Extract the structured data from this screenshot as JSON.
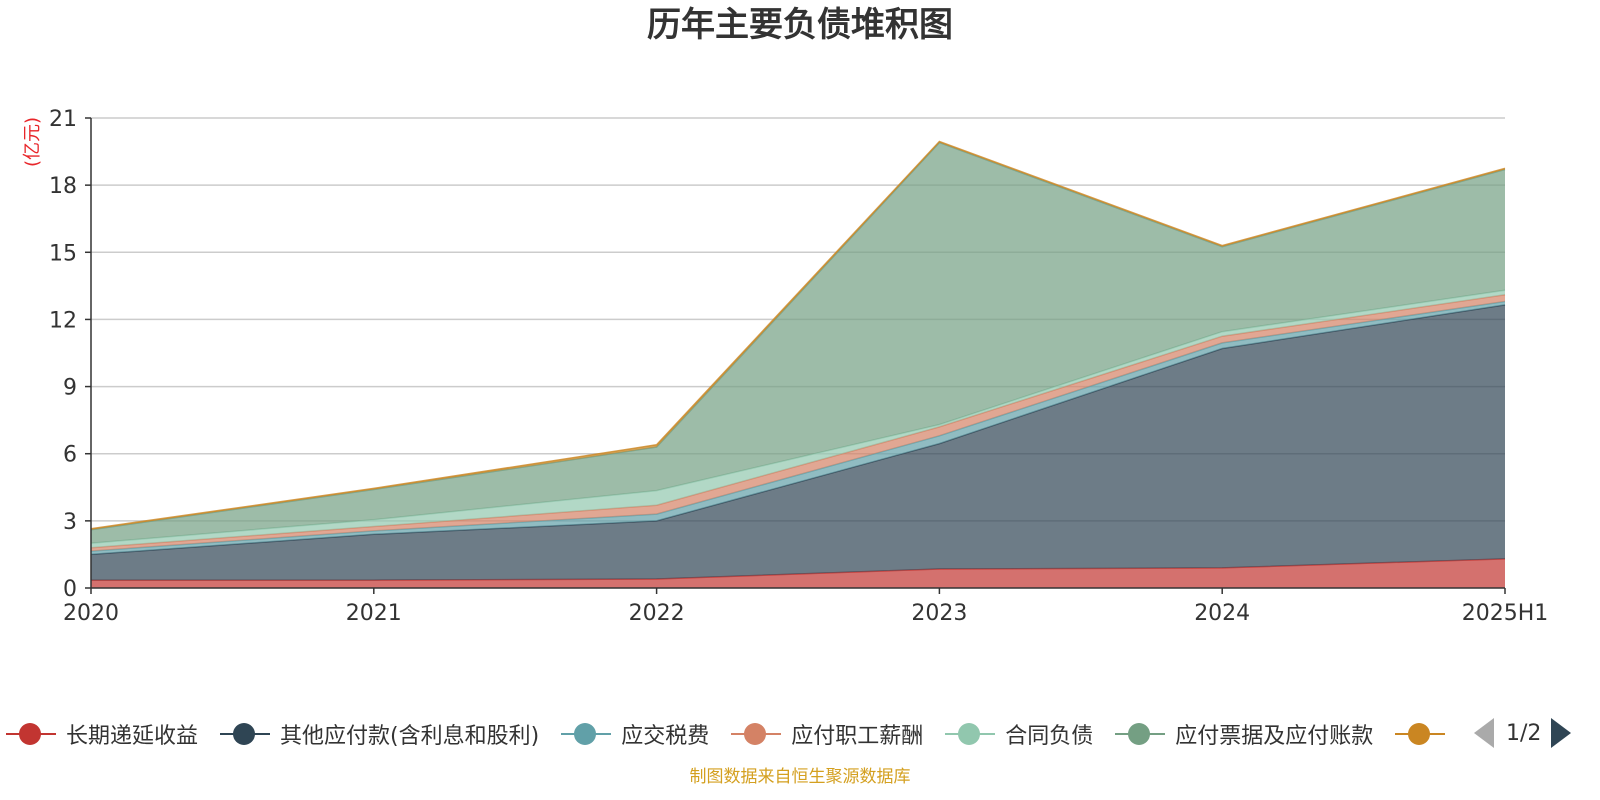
{
  "chart_data": {
    "type": "area",
    "title": "历年主要负债堆积图",
    "ylabel": "(亿元)",
    "categories": [
      "2020",
      "2021",
      "2022",
      "2023",
      "2024",
      "2025H1"
    ],
    "ylim": [
      0,
      21
    ],
    "yticks": [
      0,
      3,
      6,
      9,
      12,
      15,
      18,
      21
    ],
    "stacked": true,
    "grid": true,
    "legend_position": "bottom",
    "series": [
      {
        "name": "长期递延收益",
        "color": "#c23531",
        "values": [
          0.35,
          0.35,
          0.4,
          0.85,
          0.9,
          1.3
        ]
      },
      {
        "name": "其他应付款(含利息和股利)",
        "color": "#2f4554",
        "values": [
          1.15,
          2.05,
          2.6,
          5.6,
          9.8,
          11.35
        ]
      },
      {
        "name": "应交税费",
        "color": "#61a0a8",
        "values": [
          0.15,
          0.15,
          0.3,
          0.35,
          0.25,
          0.15
        ]
      },
      {
        "name": "应付职工薪酬",
        "color": "#d48265",
        "values": [
          0.15,
          0.2,
          0.4,
          0.4,
          0.3,
          0.3
        ]
      },
      {
        "name": "合同负债",
        "color": "#91c7ae",
        "values": [
          0.2,
          0.3,
          0.65,
          0.1,
          0.2,
          0.2
        ]
      },
      {
        "name": "应付票据及应付账款",
        "color": "#749f83",
        "values": [
          0.6,
          1.35,
          1.95,
          12.6,
          3.8,
          5.4
        ]
      },
      {
        "name": "",
        "color": "#ca8622",
        "values": [
          0.05,
          0.05,
          0.1,
          0.05,
          0.05,
          0.05
        ]
      }
    ]
  },
  "legend": {
    "items": [
      {
        "label": "长期递延收益",
        "color": "#c23531"
      },
      {
        "label": "其他应付款(含利息和股利)",
        "color": "#2f4554"
      },
      {
        "label": "应交税费",
        "color": "#61a0a8"
      },
      {
        "label": "应付职工薪酬",
        "color": "#d48265"
      },
      {
        "label": "合同负债",
        "color": "#91c7ae"
      },
      {
        "label": "应付票据及应付账款",
        "color": "#749f83"
      },
      {
        "label": "",
        "color": "#ca8622"
      }
    ],
    "page_indicator": "1/2"
  },
  "footer": {
    "source": "制图数据来自恒生聚源数据库"
  }
}
